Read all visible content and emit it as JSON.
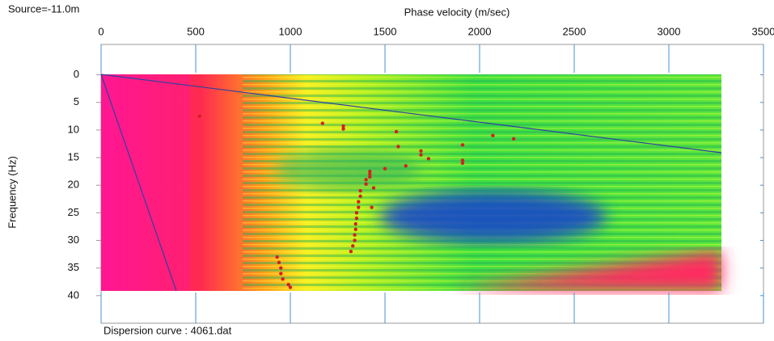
{
  "chart_data": {
    "type": "scatter",
    "title": "Phase velocity (m/sec)",
    "source_label": "Source=-11.0m",
    "y_label": "Frequency (Hz)",
    "footer": "Dispersion curve : 4061.dat",
    "xlim": [
      0,
      3500
    ],
    "xticks": [
      0,
      500,
      1000,
      1500,
      2000,
      2500,
      3000,
      3500
    ],
    "ylim": [
      -5.5,
      45
    ],
    "yticks": [
      0,
      5,
      10,
      15,
      20,
      25,
      30,
      35,
      40
    ],
    "y_reversed": true,
    "color": "#d42020",
    "x": [
      520,
      1170,
      1280,
      1280,
      1560,
      1570,
      1690,
      1690,
      1730,
      1910,
      1910,
      1910,
      2070,
      2180,
      1610,
      1500,
      1420,
      1420,
      1420,
      1400,
      1400,
      1370,
      1370,
      1360,
      1360,
      1350,
      1350,
      1345,
      1345,
      1340,
      1340,
      1330,
      1320,
      930,
      940,
      950,
      950,
      960,
      990,
      1000,
      1430,
      1440
    ],
    "values": [
      7.5,
      8.8,
      9.3,
      9.8,
      10.3,
      13,
      13.8,
      14.5,
      15.2,
      12.7,
      15.5,
      16,
      11,
      11.6,
      16.5,
      17,
      17.5,
      18,
      18.5,
      19,
      19.8,
      21,
      22,
      23,
      24,
      25,
      26,
      27,
      28,
      29,
      30,
      31,
      32,
      33,
      34,
      35,
      36,
      37,
      38,
      38.5,
      24,
      20.5
    ]
  }
}
